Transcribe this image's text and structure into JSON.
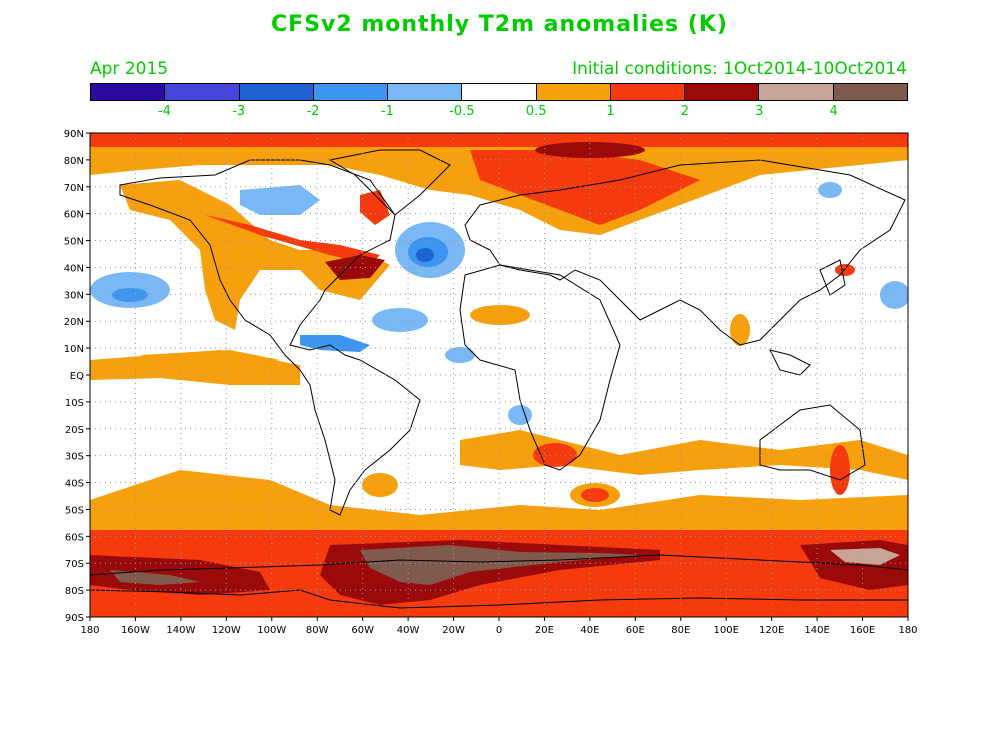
{
  "title": "CFSv2 monthly T2m anomalies (K)",
  "subtitle_left": "Apr 2015",
  "subtitle_right": "Initial conditions: 1Oct2014-10Oct2014",
  "colorbar": {
    "colors": [
      "#2a0aa0",
      "#4646d8",
      "#1f63d3",
      "#3c96ef",
      "#7ab8f5",
      "#ffffff",
      "#f7a00d",
      "#f53b0e",
      "#9b0a0a",
      "#c9a597",
      "#805a4c"
    ],
    "labels": [
      "-4",
      "-3",
      "-2",
      "-1",
      "-0.5",
      "0.5",
      "1",
      "2",
      "3",
      "4"
    ]
  },
  "map": {
    "lat_labels": [
      "90N",
      "80N",
      "70N",
      "60N",
      "50N",
      "40N",
      "30N",
      "20N",
      "10N",
      "EQ",
      "10S",
      "20S",
      "30S",
      "40S",
      "50S",
      "60S",
      "70S",
      "80S",
      "90S"
    ],
    "lon_labels": [
      "180",
      "160W",
      "140W",
      "120W",
      "100W",
      "80W",
      "60W",
      "40W",
      "20W",
      "0",
      "20E",
      "40E",
      "60E",
      "80E",
      "100E",
      "120E",
      "140E",
      "160E",
      "180"
    ],
    "frame_color": "#000000",
    "grid": "dotted"
  }
}
